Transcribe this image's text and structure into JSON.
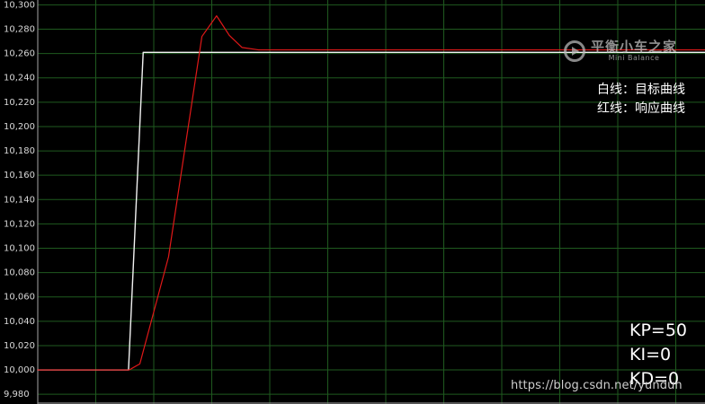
{
  "chart_data": {
    "type": "line",
    "title": "",
    "xlabel": "",
    "ylabel": "",
    "y_tick_labels": [
      "10,300",
      "10,280",
      "10,260",
      "10,240",
      "10,220",
      "10,200",
      "10,180",
      "10,160",
      "10,140",
      "10,120",
      "10,100",
      "10,080",
      "10,060",
      "10,040",
      "10,020",
      "10,000",
      "9,980"
    ],
    "ylim": [
      9.972,
      10.304
    ],
    "xlim": [
      0,
      100
    ],
    "grid": true,
    "background": "#000000",
    "grid_color": "#1f5a1f",
    "x_grid_count": 12,
    "series": [
      {
        "name": "白线：目标曲线",
        "color": "#f2f2f2",
        "x": [
          0,
          13.6,
          15.8,
          100
        ],
        "y": [
          10.0,
          10.0,
          10.261,
          10.261
        ]
      },
      {
        "name": "红线：响应曲线",
        "color": "#e01818",
        "x": [
          0,
          13.7,
          15.3,
          19.6,
          24.6,
          26.8,
          28.7,
          30.6,
          33.1,
          100
        ],
        "y": [
          10.0,
          10.0,
          10.005,
          10.093,
          10.274,
          10.291,
          10.275,
          10.265,
          10.263,
          10.263
        ]
      }
    ]
  },
  "legend": {
    "line1": "白线：目标曲线",
    "line2": "红线：响应曲线"
  },
  "params": {
    "kp": "KP=50",
    "ki": "KI=0",
    "kd": "KD=0"
  },
  "watermark": "https://blog.csdn.net/yundun",
  "logo": {
    "main": "平衡小车之家",
    "sub": "Mini Balance"
  }
}
